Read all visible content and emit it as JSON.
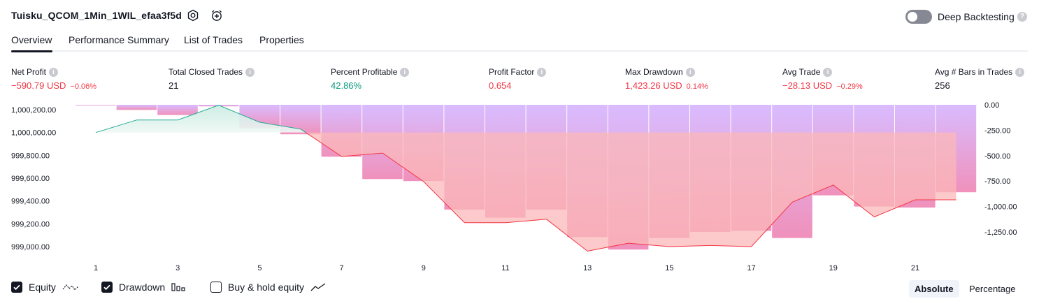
{
  "header": {
    "title": "Tuisku_QCOM_1Min_1WIL_efaa3f5d",
    "deep_backtesting_label": "Deep Backtesting",
    "deep_backtesting_on": false
  },
  "tabs": [
    {
      "label": "Overview",
      "active": true
    },
    {
      "label": "Performance Summary",
      "active": false
    },
    {
      "label": "List of Trades",
      "active": false
    },
    {
      "label": "Properties",
      "active": false
    }
  ],
  "metrics": [
    {
      "label": "Net Profit",
      "value": "−590.79 USD",
      "pct": "−0.06%",
      "tone": "red"
    },
    {
      "label": "Total Closed Trades",
      "value": "21",
      "pct": "",
      "tone": "neutral"
    },
    {
      "label": "Percent Profitable",
      "value": "42.86%",
      "pct": "",
      "tone": "green"
    },
    {
      "label": "Profit Factor",
      "value": "0.654",
      "pct": "",
      "tone": "red"
    },
    {
      "label": "Max Drawdown",
      "value": "1,423.26 USD",
      "pct": "0.14%",
      "tone": "red"
    },
    {
      "label": "Avg Trade",
      "value": "−28.13 USD",
      "pct": "−0.29%",
      "tone": "red"
    },
    {
      "label": "Avg # Bars in Trades",
      "value": "256",
      "pct": "",
      "tone": "neutral"
    }
  ],
  "chart_data": {
    "type": "line",
    "left_axis": {
      "ticks": [
        "1,000,200.00",
        "1,000,000.00",
        "999,800.00",
        "999,600.00",
        "999,400.00",
        "999,200.00",
        "999,000.00"
      ],
      "range": [
        998900,
        1000250
      ]
    },
    "right_axis": {
      "ticks": [
        "0.00",
        "-250.00",
        "-500.00",
        "-750.00",
        "-1,000.00",
        "-1,250.00"
      ],
      "range": [
        -1450,
        0
      ]
    },
    "x_ticks": [
      "1",
      "3",
      "5",
      "7",
      "9",
      "11",
      "13",
      "15",
      "17",
      "19",
      "21"
    ],
    "series": [
      {
        "key": "equity",
        "x": [
          1,
          2,
          3,
          4,
          5,
          6,
          7,
          8,
          9,
          10,
          11,
          12,
          13,
          14,
          15,
          16,
          17,
          18,
          19,
          20,
          21,
          22
        ],
        "values": [
          1000000,
          1000110,
          1000110,
          1000240,
          1000090,
          1000030,
          999790,
          999820,
          999570,
          999210,
          999210,
          999240,
          998960,
          999030,
          999000,
          999010,
          999000,
          999390,
          999540,
          999260,
          999410,
          999410
        ]
      },
      {
        "key": "drawdown",
        "x": [
          1,
          2,
          3,
          4,
          5,
          6,
          7,
          8,
          9,
          10,
          11,
          12,
          13,
          14,
          15,
          16,
          17,
          18,
          19,
          20,
          21,
          22
        ],
        "values": [
          -5,
          -50,
          -100,
          -15,
          -230,
          -290,
          -510,
          -730,
          -750,
          -1030,
          -1110,
          -1030,
          -1300,
          -1423,
          -1310,
          -1250,
          -1240,
          -1310,
          -890,
          -1000,
          -1010,
          -860
        ]
      }
    ],
    "colors": {
      "equity_line": "#22ab94",
      "equity_fill": "#c8ebe1",
      "equity_line_down": "#f23645",
      "equity_fill_down": "#fbb8b8",
      "drawdown_fill": "#d7b8ff",
      "drawdown_fill_deep": "#ef8bb8"
    }
  },
  "legend": {
    "equity_label": "Equity",
    "drawdown_label": "Drawdown",
    "buyhold_label": "Buy & hold equity",
    "equity_checked": true,
    "drawdown_checked": true,
    "buyhold_checked": false
  },
  "view_toggle": {
    "absolute_label": "Absolute",
    "percentage_label": "Percentage",
    "active": "absolute"
  }
}
